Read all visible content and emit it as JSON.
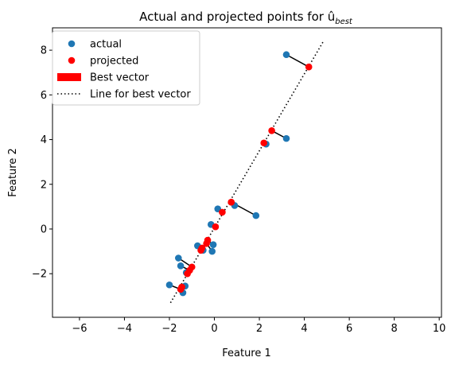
{
  "chart_data": {
    "type": "scatter",
    "title": "Actual and projected points for û",
    "title_subscript": "best",
    "xlabel": "Feature 1",
    "ylabel": "Feature 2",
    "xlim": [
      -7.2,
      10.1
    ],
    "ylim": [
      -3.95,
      9.0
    ],
    "xticks": [
      -6,
      -4,
      -2,
      0,
      2,
      4,
      6,
      8,
      10
    ],
    "yticks": [
      -2,
      0,
      2,
      4,
      6,
      8
    ],
    "grid": false,
    "legend_position": "upper-left",
    "colors": {
      "actual": "#1f77b4",
      "projected": "#ff0000",
      "connector": "#000000",
      "best_vector": "#ff0000",
      "best_line": "#000000"
    },
    "legend": [
      {
        "label": "actual",
        "kind": "dot",
        "color": "#1f77b4"
      },
      {
        "label": "projected",
        "kind": "dot",
        "color": "#ff0000"
      },
      {
        "label": "Best vector",
        "kind": "patch",
        "color": "#ff0000"
      },
      {
        "label": "Line for best vector",
        "kind": "dotted-line",
        "color": "#000000"
      }
    ],
    "best_line": {
      "x": [
        -1.95,
        4.85
      ],
      "y": [
        -3.3,
        8.4
      ]
    },
    "series": [
      {
        "name": "actual",
        "x": [
          3.2,
          3.2,
          2.3,
          1.85,
          0.9,
          0.15,
          -0.15,
          -0.75,
          -0.5,
          -0.05,
          -0.1,
          -1.6,
          -1.5,
          -1.25,
          -2.0,
          -1.4,
          -1.3
        ],
        "y": [
          7.8,
          4.05,
          3.8,
          0.6,
          1.05,
          0.9,
          0.2,
          -0.75,
          -0.95,
          -0.7,
          -1.0,
          -1.3,
          -1.65,
          -1.95,
          -2.5,
          -2.85,
          -2.55
        ]
      },
      {
        "name": "projected",
        "x": [
          4.2,
          2.55,
          2.2,
          0.75,
          0.75,
          0.35,
          0.05,
          -0.6,
          -0.55,
          -0.3,
          -0.35,
          -1.0,
          -1.1,
          -1.2,
          -1.5,
          -1.45,
          -1.45
        ],
        "y": [
          7.25,
          4.4,
          3.85,
          1.2,
          1.2,
          0.75,
          0.1,
          -0.95,
          -0.85,
          -0.5,
          -0.65,
          -1.7,
          -1.85,
          -2.0,
          -2.7,
          -2.6,
          -2.6
        ]
      }
    ]
  }
}
